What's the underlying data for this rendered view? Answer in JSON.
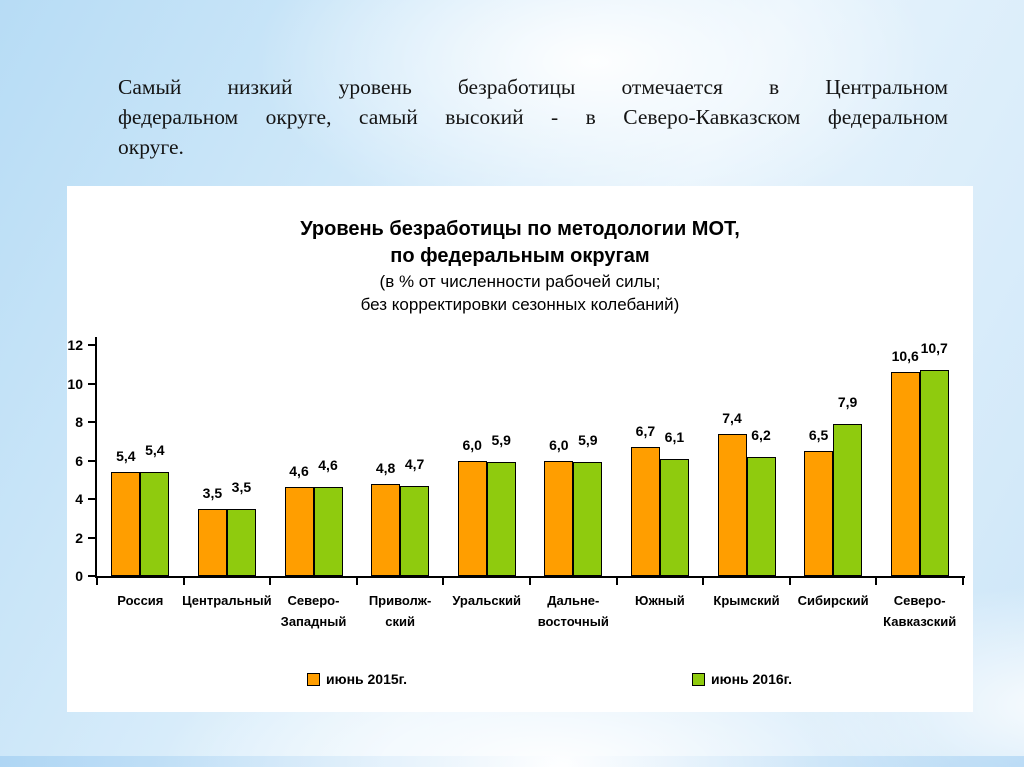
{
  "slide": {
    "paragraph_lines": [
      "Самый низкий уровень безработицы отмечается в Центральном",
      "федеральном округе, самый высокий - в Северо-Кавказском федеральном",
      "округе."
    ]
  },
  "chart_data": {
    "type": "bar",
    "title_lines": [
      "Уровень безработицы по методологии МОТ,",
      "по федеральным округам"
    ],
    "subtitle_lines": [
      "(в % от численности рабочей силы;",
      "без корректировки сезонных колебаний)"
    ],
    "categories": [
      "Россия",
      "Центральный",
      "Северо-\nЗападный",
      "Приволж-\nский",
      "Уральский",
      "Дальне-\nвосточный",
      "Южный",
      "Крымский",
      "Сибирский",
      "Северо-\nКавказский"
    ],
    "series": [
      {
        "name": "июнь 2015г.",
        "color": "#FF9E00",
        "values": [
          5.4,
          3.5,
          4.6,
          4.8,
          6.0,
          6.0,
          6.7,
          7.4,
          6.5,
          10.6
        ]
      },
      {
        "name": "июнь 2016г.",
        "color": "#8FCB0E",
        "values": [
          5.4,
          3.5,
          4.6,
          4.7,
          5.9,
          5.9,
          6.1,
          6.2,
          7.9,
          10.7
        ]
      }
    ],
    "ylabel": "",
    "xlabel": "",
    "ylim": [
      0,
      12
    ],
    "ytick_step": 2,
    "grid": false,
    "legend_position": "bottom",
    "value_decimal_separator": ","
  }
}
